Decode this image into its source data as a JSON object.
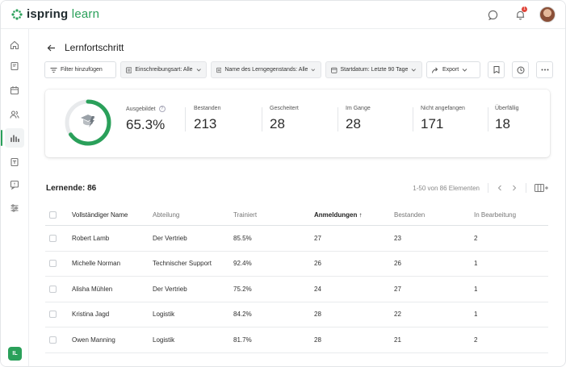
{
  "app": {
    "logo_brand": "ispring",
    "logo_product": "learn",
    "notification_count": "1",
    "user_initials": "IL"
  },
  "colors": {
    "accent": "#2aa05a",
    "badge": "#e0453a"
  },
  "sidebar": {
    "items": [
      {
        "icon": "home-icon"
      },
      {
        "icon": "book-icon"
      },
      {
        "icon": "calendar-icon"
      },
      {
        "icon": "users-icon"
      },
      {
        "icon": "chart-bar-icon",
        "active": true
      },
      {
        "icon": "document-icon"
      },
      {
        "icon": "chat-question-icon"
      },
      {
        "icon": "sliders-icon"
      }
    ]
  },
  "page": {
    "title": "Lernfortschritt"
  },
  "filters": {
    "add_filter": "Filter hinzufügen",
    "enrollment_type": "Einschreibungsart: Alle",
    "item_name": "Name des Lerngegenstands: Alle",
    "start_date": "Startdatum: Letzte 90 Tage",
    "export": "Export"
  },
  "stats": {
    "trained": {
      "label": "Ausgebildet",
      "value": "65.3%",
      "fraction": 0.653
    },
    "passed": {
      "label": "Bestanden",
      "value": "213"
    },
    "failed": {
      "label": "Gescheitert",
      "value": "28"
    },
    "in_progress": {
      "label": "Im Gange",
      "value": "28"
    },
    "not_started": {
      "label": "Nicht angefangen",
      "value": "171"
    },
    "overdue": {
      "label": "Überfällig",
      "value": "18"
    }
  },
  "table": {
    "learners_label": "Lernende: 86",
    "pagination": "1-50 von 86 Elementen",
    "columns": [
      "Vollständiger Name",
      "Abteilung",
      "Trainiert",
      "Anmeldungen ↑",
      "Bestanden",
      "In Bearbeitung"
    ],
    "rows": [
      [
        "Robert Lamb",
        "Der Vertrieb",
        "85.5%",
        "27",
        "23",
        "2"
      ],
      [
        "Michelle Norman",
        "Technischer Support",
        "92.4%",
        "26",
        "26",
        "1"
      ],
      [
        "Alisha Mühlen",
        "Der Vertrieb",
        "75.2%",
        "24",
        "27",
        "1"
      ],
      [
        "Kristina Jagd",
        "Logistik",
        "84.2%",
        "28",
        "22",
        "1"
      ],
      [
        "Owen Manning",
        "Logistik",
        "81.7%",
        "28",
        "21",
        "2"
      ]
    ]
  }
}
